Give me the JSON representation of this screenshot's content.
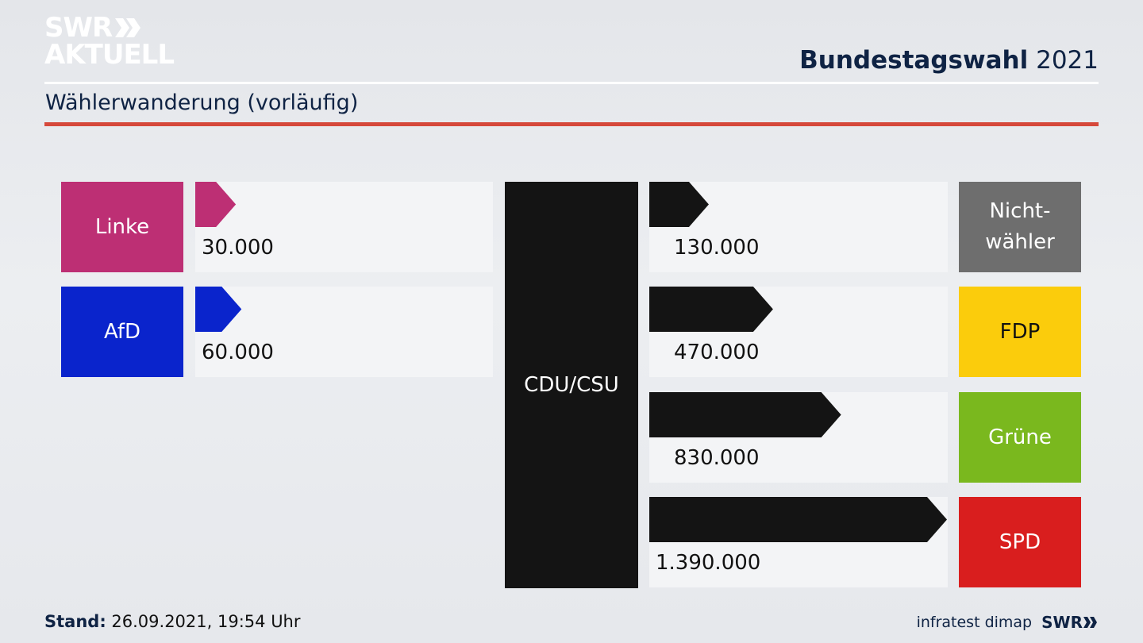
{
  "logo": {
    "line1": "SWR",
    "line2": "AKTUELL"
  },
  "headline": {
    "bold": "Bundestagswahl",
    "year": "2021"
  },
  "subtitle": "Wählerwanderung (vorläufig)",
  "center_party": "CDU/CSU",
  "colors": {
    "linke": "#bd2f74",
    "afd": "#0a24cc",
    "nichtwaehler": "#6e6e6e",
    "fdp": "#fbcc0c",
    "gruene": "#7ab81e",
    "spd": "#d91e1e",
    "cdu": "#141414",
    "accent_red": "#d6493b",
    "navy": "#0f2344"
  },
  "chart_data": {
    "type": "bar",
    "title": "Wählerwanderung (vorläufig)",
    "unit": "voters",
    "inflows_to_cdu_csu": [
      {
        "party": "Linke",
        "label": "30.000",
        "value": 30000
      },
      {
        "party": "AfD",
        "label": "60.000",
        "value": 60000
      }
    ],
    "outflows_from_cdu_csu": [
      {
        "party_line1": "Nicht-",
        "party_line2": "wähler",
        "label": "130.000",
        "value": 130000
      },
      {
        "party_line1": "FDP",
        "party_line2": "",
        "label": "470.000",
        "value": 470000
      },
      {
        "party_line1": "Grüne",
        "party_line2": "",
        "label": "830.000",
        "value": 830000
      },
      {
        "party_line1": "SPD",
        "party_line2": "",
        "label": "1.390.000",
        "value": 1390000
      }
    ]
  },
  "footer": {
    "stand_label": "Stand:",
    "stand_value": "26.09.2021, 19:54 Uhr",
    "source": "infratest dimap",
    "brand": "SWR"
  }
}
